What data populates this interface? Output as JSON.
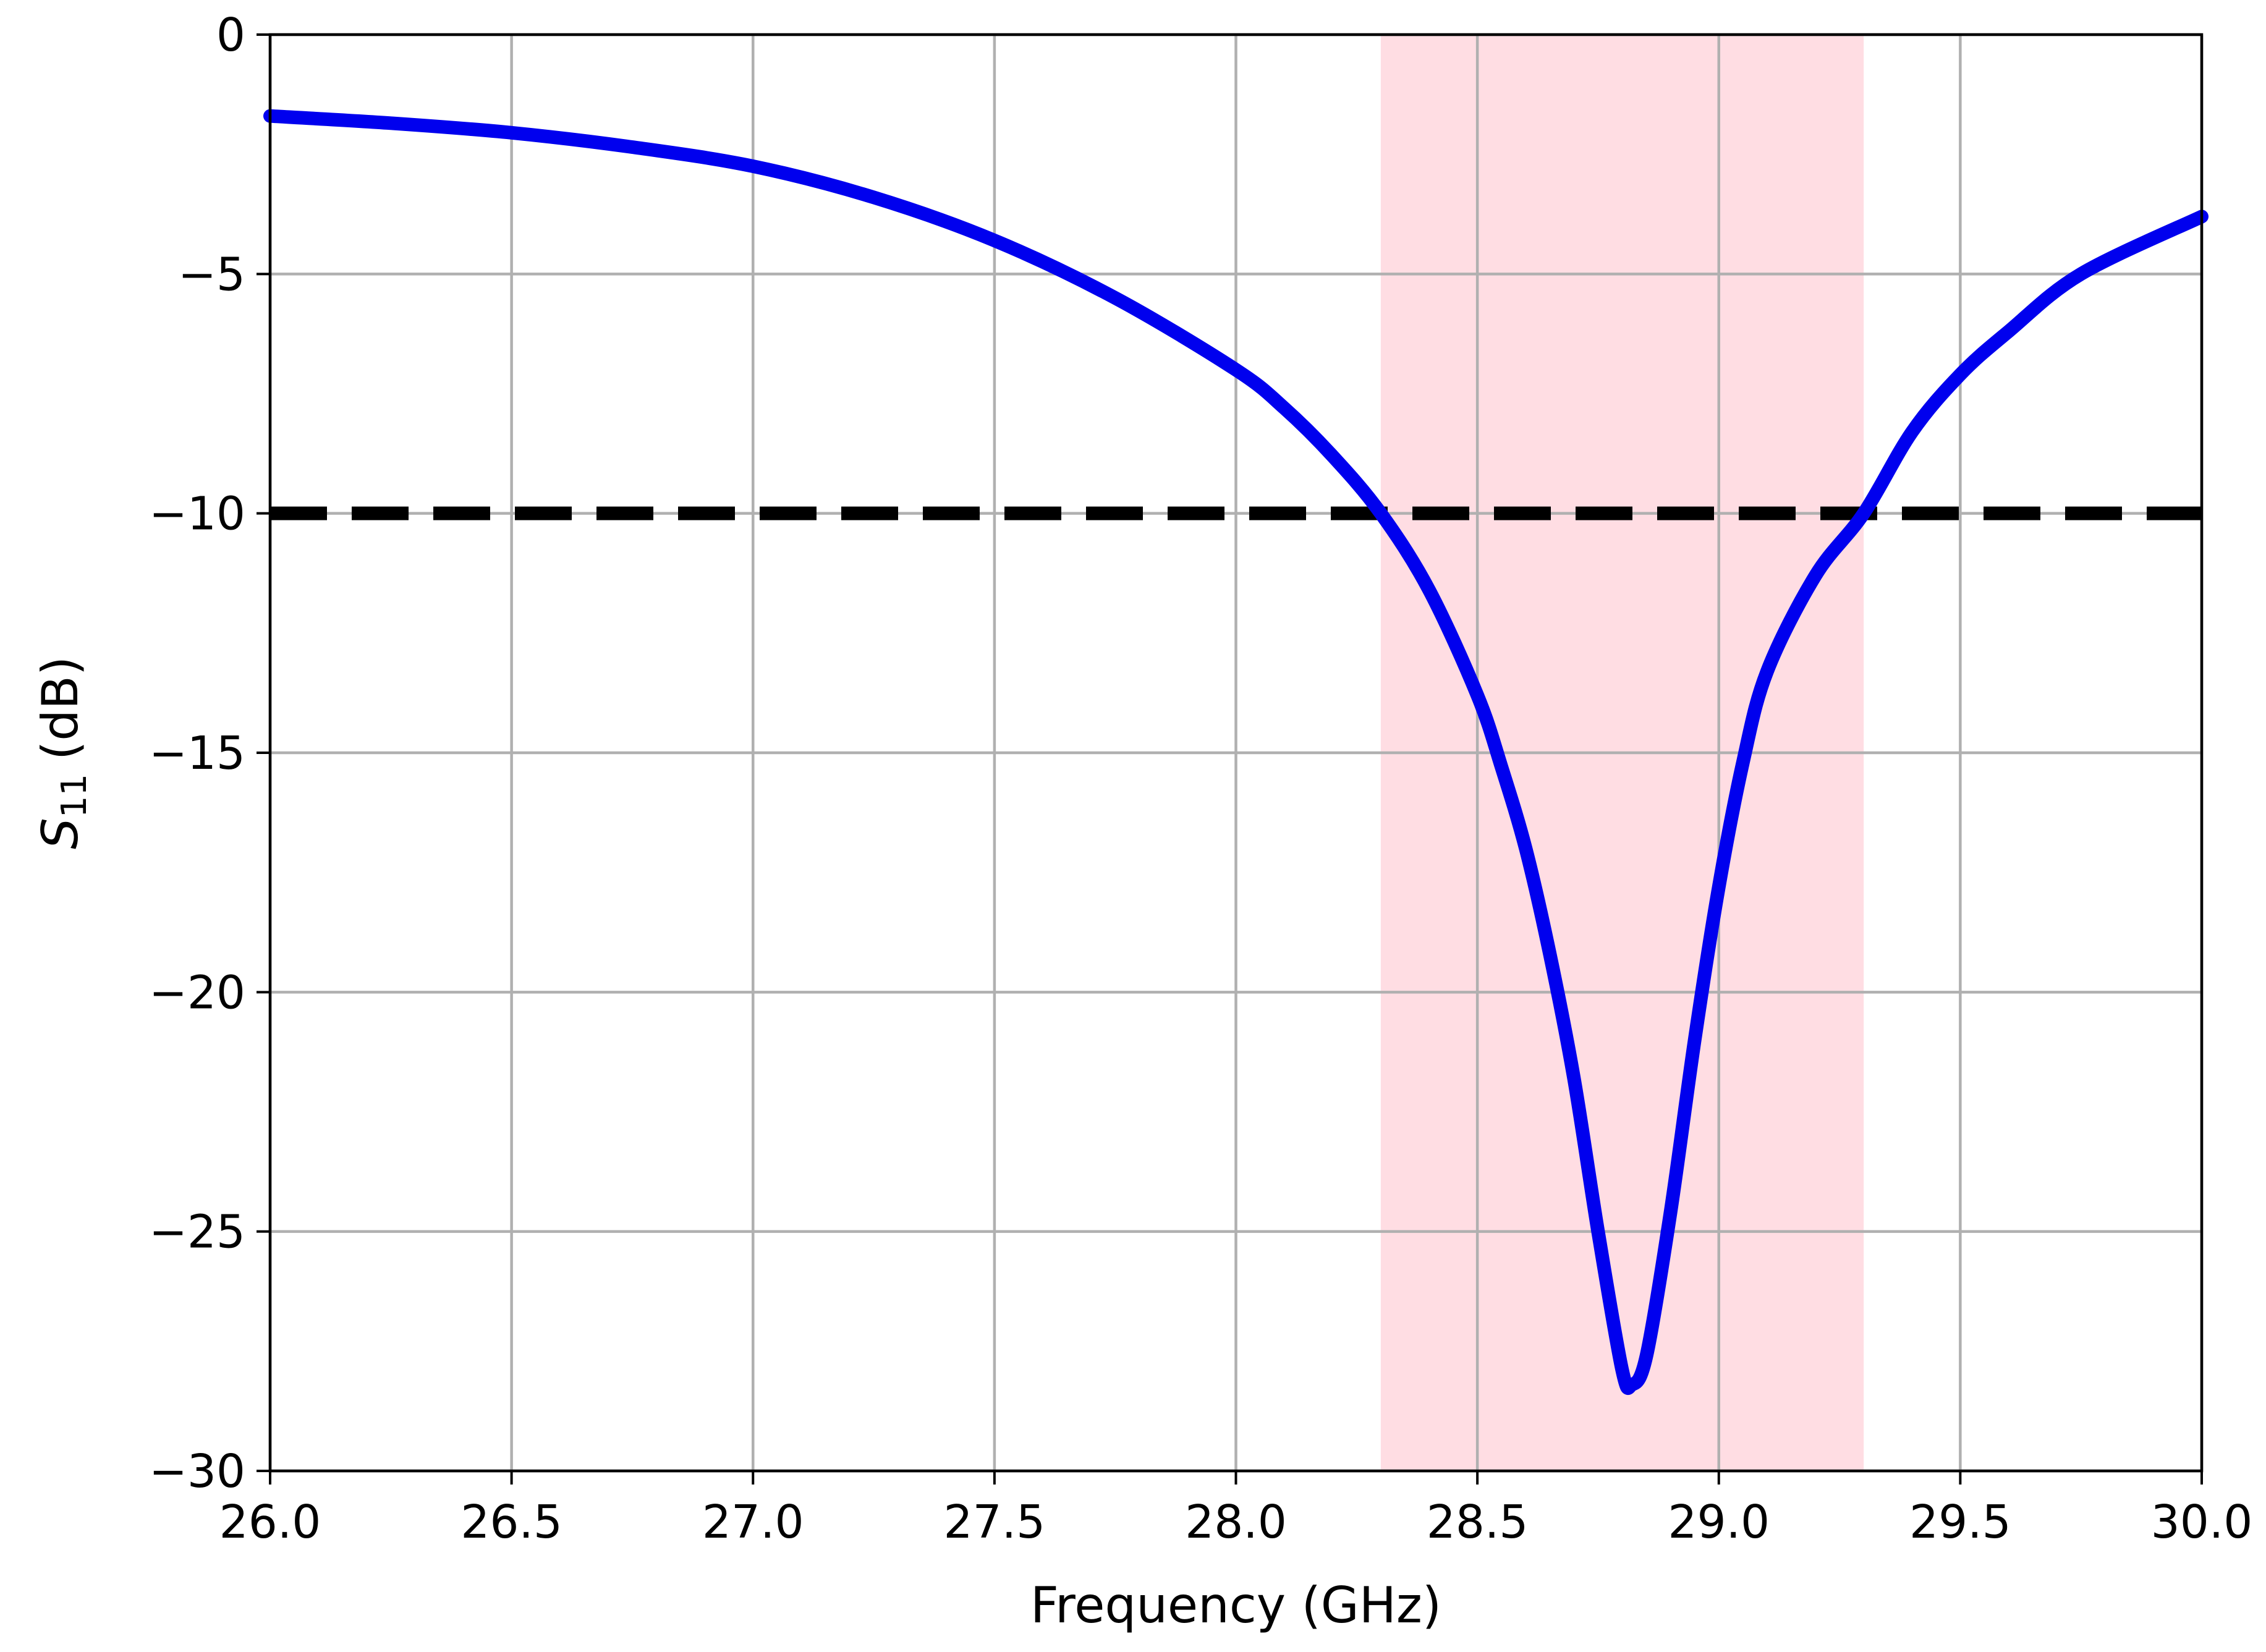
{
  "chart_data": {
    "type": "line",
    "title": "",
    "xlabel": "Frequency (GHz)",
    "ylabel_main": "S",
    "ylabel_sub": "11",
    "ylabel_unit": "(dB)",
    "xlim": [
      26.0,
      30.0
    ],
    "ylim": [
      -30,
      0
    ],
    "grid": true,
    "xticks": [
      26.0,
      26.5,
      27.0,
      27.5,
      28.0,
      28.5,
      29.0,
      29.5,
      30.0
    ],
    "xtick_labels": [
      "26.0",
      "26.5",
      "27.0",
      "27.5",
      "28.0",
      "28.5",
      "29.0",
      "29.5",
      "30.0"
    ],
    "yticks": [
      0,
      -5,
      -10,
      -15,
      -20,
      -25,
      -30
    ],
    "ytick_labels": [
      "0",
      "−5",
      "−10",
      "−15",
      "−20",
      "−25",
      "−30"
    ],
    "series": [
      {
        "name": "S11",
        "color": "#0000ee",
        "x": [
          26.0,
          26.25,
          26.5,
          26.75,
          27.0,
          27.25,
          27.5,
          27.75,
          28.0,
          28.1,
          28.2,
          28.3,
          28.4,
          28.5,
          28.55,
          28.6,
          28.65,
          28.7,
          28.75,
          28.8,
          28.82,
          28.85,
          28.9,
          28.95,
          29.0,
          29.05,
          29.1,
          29.2,
          29.3,
          29.4,
          29.5,
          29.6,
          29.75,
          30.0
        ],
        "y": [
          -1.7,
          -1.85,
          -2.05,
          -2.35,
          -2.75,
          -3.4,
          -4.3,
          -5.5,
          -7.0,
          -7.8,
          -8.8,
          -10.0,
          -11.6,
          -13.8,
          -15.3,
          -17.0,
          -19.2,
          -21.8,
          -25.0,
          -27.9,
          -28.2,
          -27.6,
          -24.6,
          -21.0,
          -17.8,
          -15.2,
          -13.3,
          -11.3,
          -10.0,
          -8.3,
          -7.1,
          -6.2,
          -5.0,
          -3.8
        ]
      }
    ],
    "threshold": {
      "value": -10,
      "style": "dashed",
      "color": "#000000"
    },
    "shaded_band": {
      "x_start": 28.3,
      "x_end": 29.3,
      "color": "#ffdde3"
    }
  }
}
